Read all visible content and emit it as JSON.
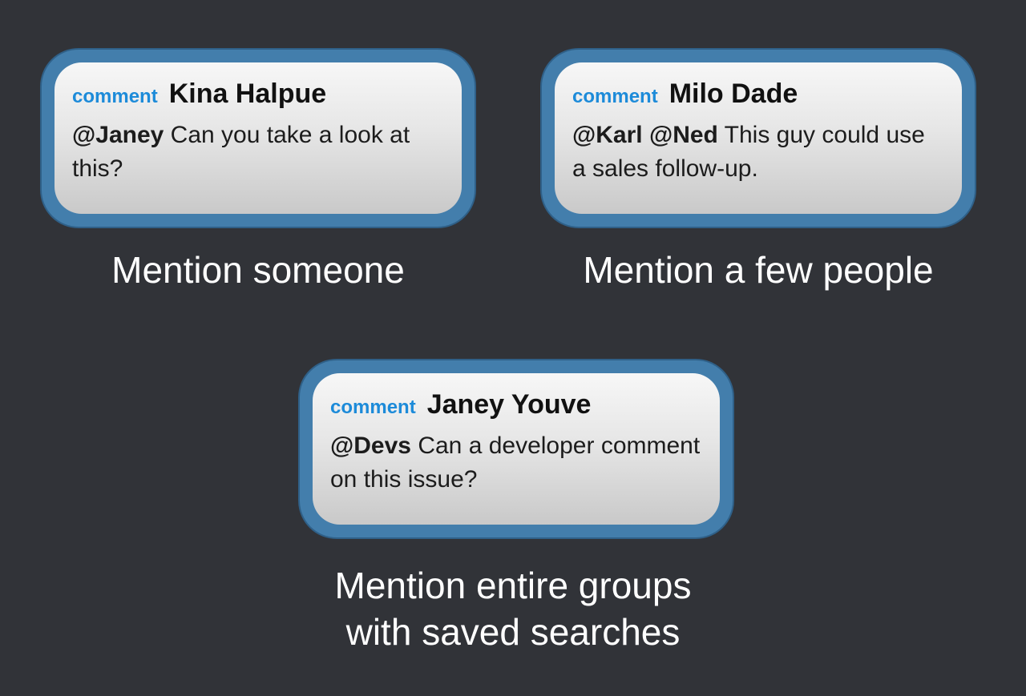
{
  "colors": {
    "background": "#313338",
    "card_border": "#437eac",
    "tag": "#1d8bd9",
    "author": "#111111",
    "caption": "#ffffff"
  },
  "cards": [
    {
      "tag": "comment",
      "author": "Kina Halpue",
      "mentions": "@Janey",
      "message": "Can you take a look at this?",
      "caption": "Mention someone"
    },
    {
      "tag": "comment",
      "author": "Milo Dade",
      "mentions": "@Karl @Ned",
      "message": "This guy could use a sales follow-up.",
      "caption": "Mention a few people"
    },
    {
      "tag": "comment",
      "author": "Janey Youve",
      "mentions": "@Devs",
      "message": "Can a developer comment on this issue?",
      "caption_line1": "Mention entire groups",
      "caption_line2": "with saved searches"
    }
  ]
}
